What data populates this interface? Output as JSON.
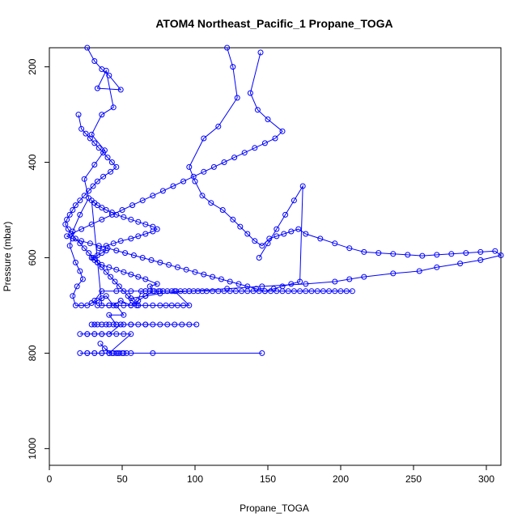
{
  "chart_data": {
    "type": "line",
    "title": "ATOM4 Northeast_Pacific_1 Propane_TOGA",
    "xlabel": "Propane_TOGA",
    "ylabel": "Pressure (mbar)",
    "xlim": [
      0,
      310
    ],
    "ylim": [
      1035,
      160
    ],
    "y_reversed": true,
    "x_ticks": [
      0,
      50,
      100,
      150,
      200,
      250,
      300
    ],
    "y_ticks": [
      200,
      400,
      600,
      800,
      1000
    ],
    "grid": false,
    "legend": "none",
    "series_color": "#0000ff",
    "series": [
      {
        "x": [
          26,
          31,
          36,
          41,
          49,
          33,
          39,
          44,
          36,
          29,
          38,
          31,
          24,
          27,
          21,
          16,
          14,
          18,
          21,
          23,
          19,
          16,
          18,
          22,
          26,
          29,
          33,
          36,
          39,
          44,
          49,
          56,
          61,
          66,
          71,
          69,
          74,
          66,
          61,
          56,
          51,
          46,
          41,
          36,
          33,
          31,
          29,
          33,
          36,
          39,
          34,
          39,
          44,
          49,
          56,
          61,
          66,
          71,
          74,
          71,
          66,
          61,
          56,
          51,
          46,
          43,
          39,
          36,
          33,
          31,
          29,
          36,
          41,
          46,
          51,
          56,
          61,
          66,
          71,
          76,
          80,
          84,
          88,
          92,
          96,
          86,
          76,
          66,
          56,
          46,
          36,
          31,
          33,
          41,
          46,
          51,
          41,
          46,
          51,
          56,
          61,
          66,
          71,
          76,
          81,
          86,
          91,
          96,
          101,
          66,
          56,
          46,
          41,
          36,
          31,
          29,
          33,
          36,
          39,
          44,
          49,
          41,
          36,
          31,
          26,
          21,
          26,
          31,
          36,
          41,
          46,
          51,
          56,
          41,
          36,
          31,
          26,
          21,
          26,
          31,
          36,
          41,
          44,
          47,
          50,
          53,
          48,
          43,
          38,
          35,
          41,
          46,
          51,
          56,
          71,
          146
        ],
        "y": [
          160,
          188,
          205,
          218,
          248,
          245,
          208,
          285,
          300,
          342,
          375,
          405,
          435,
          475,
          510,
          545,
          575,
          610,
          628,
          645,
          660,
          680,
          700,
          700,
          700,
          695,
          690,
          685,
          680,
          700,
          690,
          700,
          690,
          680,
          670,
          660,
          655,
          645,
          640,
          635,
          630,
          625,
          620,
          615,
          610,
          605,
          600,
          595,
          590,
          585,
          580,
          575,
          570,
          565,
          560,
          555,
          550,
          545,
          540,
          535,
          530,
          525,
          520,
          515,
          510,
          505,
          500,
          495,
          490,
          485,
          480,
          700,
          700,
          700,
          700,
          700,
          700,
          700,
          700,
          700,
          700,
          700,
          700,
          700,
          700,
          670,
          670,
          670,
          670,
          670,
          670,
          690,
          700,
          700,
          700,
          720,
          720,
          740,
          740,
          740,
          740,
          740,
          740,
          740,
          740,
          740,
          740,
          740,
          740,
          740,
          740,
          740,
          740,
          740,
          740,
          740,
          740,
          740,
          740,
          740,
          740,
          760,
          760,
          760,
          760,
          760,
          760,
          760,
          760,
          760,
          760,
          760,
          760,
          800,
          800,
          800,
          800,
          800,
          800,
          800,
          800,
          800,
          800,
          800,
          800,
          800,
          800,
          800,
          790,
          780,
          800,
          800,
          800,
          800,
          800,
          800
        ]
      },
      {
        "x": [
          20,
          22,
          25,
          28,
          31,
          34,
          37,
          40,
          43,
          46,
          42,
          37,
          33,
          30,
          27,
          24,
          21,
          18,
          16,
          14,
          12,
          11,
          13,
          15,
          18,
          21,
          24,
          27,
          30,
          33,
          36,
          39,
          42,
          45,
          48,
          51,
          54,
          57,
          60,
          63,
          66,
          69,
          72,
          75,
          78,
          81,
          84,
          87,
          90,
          93,
          96,
          99,
          102,
          105,
          108,
          112,
          116,
          120,
          124,
          128,
          132,
          136,
          140,
          144,
          148,
          152,
          156,
          160,
          164,
          168,
          172,
          176,
          180,
          184,
          188,
          192,
          196,
          200,
          204,
          208
        ],
        "y": [
          300,
          330,
          340,
          350,
          360,
          370,
          380,
          390,
          400,
          410,
          420,
          430,
          440,
          450,
          460,
          470,
          480,
          490,
          500,
          510,
          520,
          530,
          540,
          550,
          560,
          570,
          580,
          590,
          600,
          610,
          620,
          630,
          640,
          650,
          660,
          670,
          680,
          690,
          700,
          670,
          670,
          670,
          670,
          670,
          670,
          670,
          670,
          670,
          670,
          670,
          670,
          670,
          670,
          670,
          670,
          670,
          670,
          670,
          670,
          670,
          670,
          670,
          670,
          670,
          670,
          670,
          670,
          670,
          670,
          670,
          670,
          670,
          670,
          670,
          670,
          670,
          670,
          670,
          670,
          670
        ]
      },
      {
        "x": [
          122,
          126,
          129,
          116,
          106,
          96,
          100,
          105,
          111,
          119,
          126,
          131,
          136,
          141,
          146,
          151,
          156,
          161,
          166,
          171,
          176,
          186,
          196,
          206,
          216,
          226,
          236,
          246,
          256,
          266,
          276,
          286,
          296,
          306,
          310,
          296,
          282,
          266,
          254,
          236,
          216,
          206,
          196,
          176,
          146,
          122,
          96,
          76,
          66,
          56
        ],
        "y": [
          160,
          200,
          265,
          325,
          350,
          410,
          440,
          470,
          485,
          500,
          520,
          535,
          550,
          565,
          575,
          560,
          555,
          550,
          545,
          540,
          550,
          560,
          570,
          580,
          588,
          590,
          592,
          594,
          596,
          594,
          592,
          590,
          588,
          586,
          595,
          605,
          612,
          620,
          628,
          633,
          640,
          645,
          650,
          655,
          660,
          665,
          670,
          675,
          680,
          685
        ]
      },
      {
        "x": [
          145,
          138,
          143,
          150,
          160,
          155,
          148,
          141,
          134,
          127,
          120,
          113,
          106,
          99,
          92,
          85,
          78,
          71,
          64,
          57,
          50,
          43,
          36,
          29,
          22,
          15,
          12,
          16,
          22,
          28,
          34,
          40,
          46,
          52,
          58,
          64,
          70,
          76,
          82,
          88,
          94,
          100,
          106,
          112,
          118,
          124,
          130,
          136,
          142,
          148,
          154,
          160,
          166,
          172,
          174,
          168,
          162,
          156,
          150,
          144
        ],
        "y": [
          170,
          255,
          290,
          310,
          335,
          350,
          360,
          370,
          380,
          390,
          400,
          410,
          420,
          430,
          440,
          450,
          460,
          470,
          480,
          490,
          500,
          510,
          520,
          530,
          540,
          550,
          555,
          560,
          565,
          570,
          575,
          580,
          585,
          590,
          595,
          600,
          605,
          610,
          615,
          620,
          625,
          630,
          635,
          640,
          645,
          650,
          655,
          660,
          665,
          670,
          665,
          660,
          655,
          650,
          450,
          480,
          510,
          540,
          570,
          600
        ]
      }
    ]
  }
}
